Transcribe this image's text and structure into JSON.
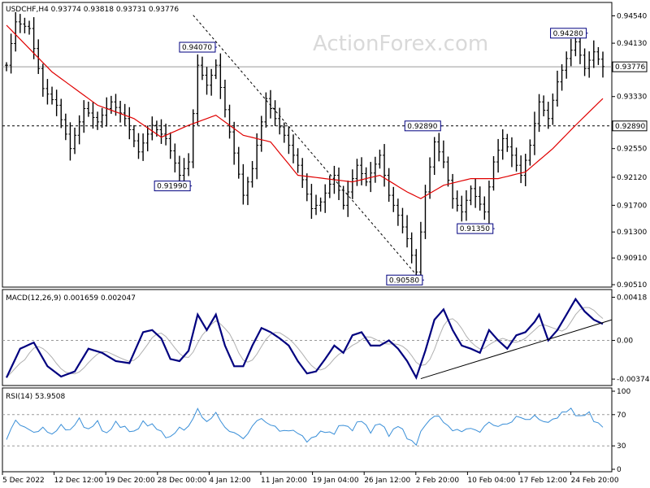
{
  "watermark": "ActionForex.com",
  "colors": {
    "bars": "#000000",
    "ma": "#e00000",
    "macd_line": "#00007f",
    "signal_line": "#b0b0b0",
    "rsi_line": "#3a8fd8",
    "annotation_border": "#00007f"
  },
  "chart_data": [
    {
      "type": "ohlc",
      "title": "USDCHF,H4  0.93774  0.93818  0.93731  0.93776",
      "y_ticks": [
        "0.94540",
        "0.94130",
        "0.93776",
        "0.93330",
        "0.92890",
        "0.92550",
        "0.92120",
        "0.91700",
        "0.91300",
        "0.90910",
        "0.90510"
      ],
      "ylim": [
        0.9051,
        0.9468
      ],
      "price_tag": "0.93776",
      "level_tag": "0.92890",
      "x_ticks": [
        "5 Dec 2022",
        "12 Dec 12:00",
        "19 Dec 20:00",
        "28 Dec 00:00",
        "4 Jan 12:00",
        "11 Jan 20:00",
        "19 Jan 04:00",
        "26 Jan 12:00",
        "2 Feb 20:00",
        "10 Feb 04:00",
        "17 Feb 12:00",
        "24 Feb 20:00"
      ],
      "anchors": [
        [
          0,
          0.938
        ],
        [
          2,
          0.9445
        ],
        [
          5,
          0.9435
        ],
        [
          8,
          0.9345
        ],
        [
          11,
          0.932
        ],
        [
          14,
          0.9255
        ],
        [
          17,
          0.9315
        ],
        [
          20,
          0.9295
        ],
        [
          23,
          0.9325
        ],
        [
          26,
          0.93
        ],
        [
          29,
          0.925
        ],
        [
          32,
          0.929
        ],
        [
          35,
          0.927
        ],
        [
          38,
          0.9215
        ],
        [
          40,
          0.9235
        ],
        [
          42,
          0.938
        ],
        [
          44,
          0.935
        ],
        [
          46,
          0.938
        ],
        [
          49,
          0.928
        ],
        [
          52,
          0.9185
        ],
        [
          54,
          0.9225
        ],
        [
          57,
          0.933
        ],
        [
          59,
          0.93
        ],
        [
          61,
          0.9275
        ],
        [
          64,
          0.923
        ],
        [
          67,
          0.9165
        ],
        [
          69,
          0.9175
        ],
        [
          72,
          0.9215
        ],
        [
          74,
          0.917
        ],
        [
          77,
          0.923
        ],
        [
          79,
          0.9205
        ],
        [
          82,
          0.9245
        ],
        [
          84,
          0.9185
        ],
        [
          86,
          0.9155
        ],
        [
          88,
          0.912
        ],
        [
          90,
          0.907
        ],
        [
          92,
          0.919
        ],
        [
          94,
          0.9265
        ],
        [
          96,
          0.9235
        ],
        [
          98,
          0.918
        ],
        [
          100,
          0.916
        ],
        [
          102,
          0.9195
        ],
        [
          105,
          0.916
        ],
        [
          107,
          0.9235
        ],
        [
          109,
          0.927
        ],
        [
          111,
          0.9245
        ],
        [
          113,
          0.9215
        ],
        [
          115,
          0.926
        ],
        [
          117,
          0.9325
        ],
        [
          119,
          0.93
        ],
        [
          121,
          0.9355
        ],
        [
          123,
          0.939
        ],
        [
          125,
          0.9415
        ],
        [
          127,
          0.9375
        ],
        [
          129,
          0.94
        ],
        [
          131,
          0.9378
        ]
      ],
      "ma_anchors": [
        [
          0,
          0.944
        ],
        [
          10,
          0.937
        ],
        [
          20,
          0.932
        ],
        [
          28,
          0.93
        ],
        [
          34,
          0.9272
        ],
        [
          40,
          0.929
        ],
        [
          46,
          0.9305
        ],
        [
          52,
          0.9275
        ],
        [
          58,
          0.9265
        ],
        [
          64,
          0.9215
        ],
        [
          70,
          0.921
        ],
        [
          76,
          0.9205
        ],
        [
          82,
          0.9215
        ],
        [
          88,
          0.919
        ],
        [
          91,
          0.918
        ],
        [
          96,
          0.92
        ],
        [
          102,
          0.921
        ],
        [
          108,
          0.921
        ],
        [
          114,
          0.922
        ],
        [
          120,
          0.9255
        ],
        [
          125,
          0.929
        ],
        [
          131,
          0.933
        ]
      ],
      "annotations": [
        {
          "label": "0.94070",
          "x": 45.5,
          "y": 0.9407,
          "side": "left"
        },
        {
          "label": "0.91990",
          "x": 40,
          "y": 0.9199,
          "side": "left"
        },
        {
          "label": "0.92890",
          "x": 95,
          "y": 0.9289,
          "side": "left"
        },
        {
          "label": "0.91350",
          "x": 106.5,
          "y": 0.9135,
          "side": "left"
        },
        {
          "label": "0.90580",
          "x": 91,
          "y": 0.9058,
          "side": "left"
        },
        {
          "label": "0.94280",
          "x": 127,
          "y": 0.9428,
          "side": "left"
        }
      ],
      "trendline": [
        [
          41,
          0.9455
        ],
        [
          91,
          0.9058
        ]
      ]
    },
    {
      "type": "line",
      "title": "MACD(12,26,9) 0.001659 0.002047",
      "y_ticks": [
        "0.00418",
        "0.00",
        "-0.003744"
      ],
      "ylim": [
        -0.00405,
        0.00445
      ],
      "macd_anchors": [
        [
          0,
          -0.0036
        ],
        [
          3,
          -0.0008
        ],
        [
          6,
          -0.0002
        ],
        [
          9,
          -0.0025
        ],
        [
          12,
          -0.0035
        ],
        [
          15,
          -0.003
        ],
        [
          18,
          -0.0008
        ],
        [
          21,
          -0.0012
        ],
        [
          24,
          -0.002
        ],
        [
          27,
          -0.0022
        ],
        [
          30,
          0.0008
        ],
        [
          32,
          0.001
        ],
        [
          34,
          0.0002
        ],
        [
          36,
          -0.0018
        ],
        [
          38,
          -0.002
        ],
        [
          40,
          -0.001
        ],
        [
          42,
          0.0025
        ],
        [
          44,
          0.001
        ],
        [
          46,
          0.0025
        ],
        [
          48,
          -0.0005
        ],
        [
          50,
          -0.0025
        ],
        [
          52,
          -0.0025
        ],
        [
          54,
          -0.0005
        ],
        [
          56,
          0.0012
        ],
        [
          58,
          0.0008
        ],
        [
          60,
          0.0002
        ],
        [
          62,
          -0.0005
        ],
        [
          64,
          -0.002
        ],
        [
          66,
          -0.0032
        ],
        [
          68,
          -0.003
        ],
        [
          70,
          -0.0018
        ],
        [
          72,
          -0.0005
        ],
        [
          74,
          -0.0012
        ],
        [
          76,
          0.0005
        ],
        [
          78,
          0.0008
        ],
        [
          80,
          -0.0005
        ],
        [
          82,
          -0.0005
        ],
        [
          84,
          0.0
        ],
        [
          86,
          -0.0008
        ],
        [
          88,
          -0.002
        ],
        [
          90,
          -0.0036
        ],
        [
          92,
          -0.001
        ],
        [
          94,
          0.002
        ],
        [
          96,
          0.003
        ],
        [
          98,
          0.001
        ],
        [
          100,
          -0.0005
        ],
        [
          102,
          -0.0008
        ],
        [
          104,
          -0.0012
        ],
        [
          106,
          0.001
        ],
        [
          108,
          0.0
        ],
        [
          110,
          -0.0008
        ],
        [
          112,
          0.0005
        ],
        [
          114,
          0.0008
        ],
        [
          116,
          0.0018
        ],
        [
          117,
          0.0025
        ],
        [
          119,
          0.0
        ],
        [
          121,
          0.001
        ],
        [
          123,
          0.0025
        ],
        [
          125,
          0.004
        ],
        [
          127,
          0.0028
        ],
        [
          129,
          0.002
        ],
        [
          131,
          0.0016
        ]
      ],
      "signal_shift": 2,
      "trendline": [
        [
          91,
          -0.0037
        ],
        [
          133,
          0.002
        ]
      ]
    },
    {
      "type": "line",
      "title": "RSI(14) 53.9508",
      "y_ticks": [
        "100",
        "70",
        "30",
        "0"
      ],
      "ylim": [
        0,
        100
      ],
      "levels": [
        70,
        30
      ],
      "rsi_anchors": [
        [
          0,
          38
        ],
        [
          2,
          62
        ],
        [
          4,
          55
        ],
        [
          6,
          45
        ],
        [
          8,
          55
        ],
        [
          10,
          42
        ],
        [
          12,
          58
        ],
        [
          14,
          48
        ],
        [
          16,
          65
        ],
        [
          18,
          50
        ],
        [
          20,
          60
        ],
        [
          22,
          46
        ],
        [
          24,
          58
        ],
        [
          26,
          55
        ],
        [
          28,
          45
        ],
        [
          30,
          62
        ],
        [
          32,
          55
        ],
        [
          34,
          48
        ],
        [
          36,
          40
        ],
        [
          38,
          52
        ],
        [
          40,
          55
        ],
        [
          42,
          75
        ],
        [
          44,
          62
        ],
        [
          46,
          70
        ],
        [
          48,
          55
        ],
        [
          50,
          45
        ],
        [
          52,
          40
        ],
        [
          54,
          55
        ],
        [
          56,
          65
        ],
        [
          58,
          58
        ],
        [
          60,
          48
        ],
        [
          62,
          52
        ],
        [
          64,
          45
        ],
        [
          66,
          38
        ],
        [
          68,
          42
        ],
        [
          70,
          50
        ],
        [
          72,
          46
        ],
        [
          74,
          58
        ],
        [
          76,
          52
        ],
        [
          78,
          62
        ],
        [
          80,
          50
        ],
        [
          82,
          58
        ],
        [
          84,
          46
        ],
        [
          86,
          55
        ],
        [
          88,
          42
        ],
        [
          90,
          32
        ],
        [
          92,
          58
        ],
        [
          94,
          70
        ],
        [
          96,
          60
        ],
        [
          98,
          52
        ],
        [
          100,
          47
        ],
        [
          102,
          55
        ],
        [
          104,
          46
        ],
        [
          106,
          62
        ],
        [
          108,
          54
        ],
        [
          110,
          58
        ],
        [
          112,
          68
        ],
        [
          114,
          62
        ],
        [
          116,
          70
        ],
        [
          118,
          58
        ],
        [
          120,
          65
        ],
        [
          122,
          70
        ],
        [
          124,
          78
        ],
        [
          126,
          66
        ],
        [
          128,
          72
        ],
        [
          130,
          58
        ],
        [
          131,
          54
        ]
      ]
    }
  ]
}
